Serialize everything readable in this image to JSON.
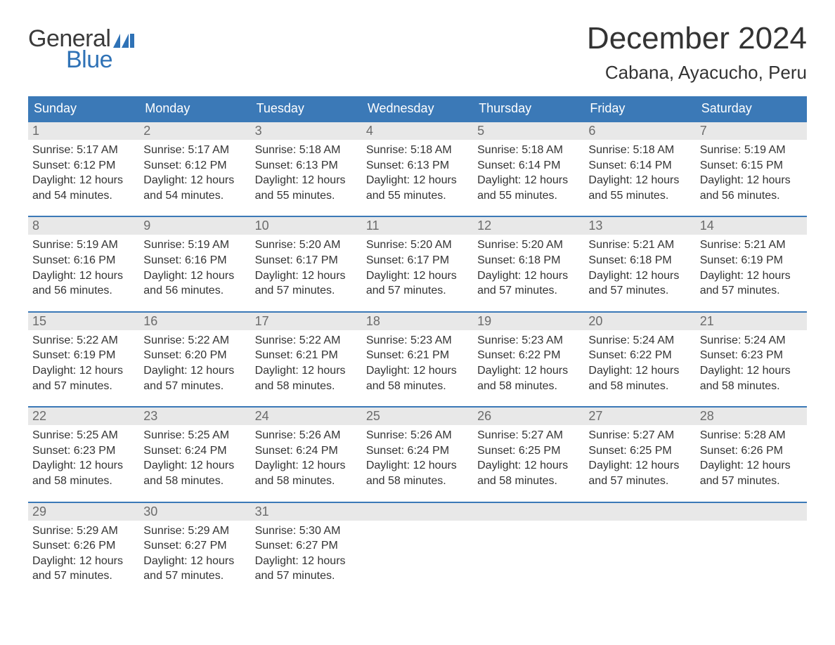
{
  "logo": {
    "word1": "General",
    "word2": "Blue",
    "flag_color": "#2f72b6"
  },
  "title": {
    "month": "December 2024",
    "location": "Cabana, Ayacucho, Peru"
  },
  "colors": {
    "header_bg": "#3b79b7",
    "header_text": "#ffffff",
    "daynum_bg": "#e8e8e8",
    "daynum_text": "#6b6b6b",
    "body_text": "#333333",
    "row_border": "#3b79b7",
    "logo_blue": "#2f72b6",
    "page_bg": "#ffffff"
  },
  "typography": {
    "month_title_fontsize": 44,
    "location_fontsize": 26,
    "day_header_fontsize": 18,
    "day_number_fontsize": 18,
    "body_fontsize": 16,
    "logo_fontsize": 34
  },
  "day_headers": [
    "Sunday",
    "Monday",
    "Tuesday",
    "Wednesday",
    "Thursday",
    "Friday",
    "Saturday"
  ],
  "weeks": [
    [
      {
        "num": "1",
        "sunrise": "Sunrise: 5:17 AM",
        "sunset": "Sunset: 6:12 PM",
        "d1": "Daylight: 12 hours",
        "d2": "and 54 minutes."
      },
      {
        "num": "2",
        "sunrise": "Sunrise: 5:17 AM",
        "sunset": "Sunset: 6:12 PM",
        "d1": "Daylight: 12 hours",
        "d2": "and 54 minutes."
      },
      {
        "num": "3",
        "sunrise": "Sunrise: 5:18 AM",
        "sunset": "Sunset: 6:13 PM",
        "d1": "Daylight: 12 hours",
        "d2": "and 55 minutes."
      },
      {
        "num": "4",
        "sunrise": "Sunrise: 5:18 AM",
        "sunset": "Sunset: 6:13 PM",
        "d1": "Daylight: 12 hours",
        "d2": "and 55 minutes."
      },
      {
        "num": "5",
        "sunrise": "Sunrise: 5:18 AM",
        "sunset": "Sunset: 6:14 PM",
        "d1": "Daylight: 12 hours",
        "d2": "and 55 minutes."
      },
      {
        "num": "6",
        "sunrise": "Sunrise: 5:18 AM",
        "sunset": "Sunset: 6:14 PM",
        "d1": "Daylight: 12 hours",
        "d2": "and 55 minutes."
      },
      {
        "num": "7",
        "sunrise": "Sunrise: 5:19 AM",
        "sunset": "Sunset: 6:15 PM",
        "d1": "Daylight: 12 hours",
        "d2": "and 56 minutes."
      }
    ],
    [
      {
        "num": "8",
        "sunrise": "Sunrise: 5:19 AM",
        "sunset": "Sunset: 6:16 PM",
        "d1": "Daylight: 12 hours",
        "d2": "and 56 minutes."
      },
      {
        "num": "9",
        "sunrise": "Sunrise: 5:19 AM",
        "sunset": "Sunset: 6:16 PM",
        "d1": "Daylight: 12 hours",
        "d2": "and 56 minutes."
      },
      {
        "num": "10",
        "sunrise": "Sunrise: 5:20 AM",
        "sunset": "Sunset: 6:17 PM",
        "d1": "Daylight: 12 hours",
        "d2": "and 57 minutes."
      },
      {
        "num": "11",
        "sunrise": "Sunrise: 5:20 AM",
        "sunset": "Sunset: 6:17 PM",
        "d1": "Daylight: 12 hours",
        "d2": "and 57 minutes."
      },
      {
        "num": "12",
        "sunrise": "Sunrise: 5:20 AM",
        "sunset": "Sunset: 6:18 PM",
        "d1": "Daylight: 12 hours",
        "d2": "and 57 minutes."
      },
      {
        "num": "13",
        "sunrise": "Sunrise: 5:21 AM",
        "sunset": "Sunset: 6:18 PM",
        "d1": "Daylight: 12 hours",
        "d2": "and 57 minutes."
      },
      {
        "num": "14",
        "sunrise": "Sunrise: 5:21 AM",
        "sunset": "Sunset: 6:19 PM",
        "d1": "Daylight: 12 hours",
        "d2": "and 57 minutes."
      }
    ],
    [
      {
        "num": "15",
        "sunrise": "Sunrise: 5:22 AM",
        "sunset": "Sunset: 6:19 PM",
        "d1": "Daylight: 12 hours",
        "d2": "and 57 minutes."
      },
      {
        "num": "16",
        "sunrise": "Sunrise: 5:22 AM",
        "sunset": "Sunset: 6:20 PM",
        "d1": "Daylight: 12 hours",
        "d2": "and 57 minutes."
      },
      {
        "num": "17",
        "sunrise": "Sunrise: 5:22 AM",
        "sunset": "Sunset: 6:21 PM",
        "d1": "Daylight: 12 hours",
        "d2": "and 58 minutes."
      },
      {
        "num": "18",
        "sunrise": "Sunrise: 5:23 AM",
        "sunset": "Sunset: 6:21 PM",
        "d1": "Daylight: 12 hours",
        "d2": "and 58 minutes."
      },
      {
        "num": "19",
        "sunrise": "Sunrise: 5:23 AM",
        "sunset": "Sunset: 6:22 PM",
        "d1": "Daylight: 12 hours",
        "d2": "and 58 minutes."
      },
      {
        "num": "20",
        "sunrise": "Sunrise: 5:24 AM",
        "sunset": "Sunset: 6:22 PM",
        "d1": "Daylight: 12 hours",
        "d2": "and 58 minutes."
      },
      {
        "num": "21",
        "sunrise": "Sunrise: 5:24 AM",
        "sunset": "Sunset: 6:23 PM",
        "d1": "Daylight: 12 hours",
        "d2": "and 58 minutes."
      }
    ],
    [
      {
        "num": "22",
        "sunrise": "Sunrise: 5:25 AM",
        "sunset": "Sunset: 6:23 PM",
        "d1": "Daylight: 12 hours",
        "d2": "and 58 minutes."
      },
      {
        "num": "23",
        "sunrise": "Sunrise: 5:25 AM",
        "sunset": "Sunset: 6:24 PM",
        "d1": "Daylight: 12 hours",
        "d2": "and 58 minutes."
      },
      {
        "num": "24",
        "sunrise": "Sunrise: 5:26 AM",
        "sunset": "Sunset: 6:24 PM",
        "d1": "Daylight: 12 hours",
        "d2": "and 58 minutes."
      },
      {
        "num": "25",
        "sunrise": "Sunrise: 5:26 AM",
        "sunset": "Sunset: 6:24 PM",
        "d1": "Daylight: 12 hours",
        "d2": "and 58 minutes."
      },
      {
        "num": "26",
        "sunrise": "Sunrise: 5:27 AM",
        "sunset": "Sunset: 6:25 PM",
        "d1": "Daylight: 12 hours",
        "d2": "and 58 minutes."
      },
      {
        "num": "27",
        "sunrise": "Sunrise: 5:27 AM",
        "sunset": "Sunset: 6:25 PM",
        "d1": "Daylight: 12 hours",
        "d2": "and 57 minutes."
      },
      {
        "num": "28",
        "sunrise": "Sunrise: 5:28 AM",
        "sunset": "Sunset: 6:26 PM",
        "d1": "Daylight: 12 hours",
        "d2": "and 57 minutes."
      }
    ],
    [
      {
        "num": "29",
        "sunrise": "Sunrise: 5:29 AM",
        "sunset": "Sunset: 6:26 PM",
        "d1": "Daylight: 12 hours",
        "d2": "and 57 minutes."
      },
      {
        "num": "30",
        "sunrise": "Sunrise: 5:29 AM",
        "sunset": "Sunset: 6:27 PM",
        "d1": "Daylight: 12 hours",
        "d2": "and 57 minutes."
      },
      {
        "num": "31",
        "sunrise": "Sunrise: 5:30 AM",
        "sunset": "Sunset: 6:27 PM",
        "d1": "Daylight: 12 hours",
        "d2": "and 57 minutes."
      },
      {
        "empty": true
      },
      {
        "empty": true
      },
      {
        "empty": true
      },
      {
        "empty": true
      }
    ]
  ]
}
